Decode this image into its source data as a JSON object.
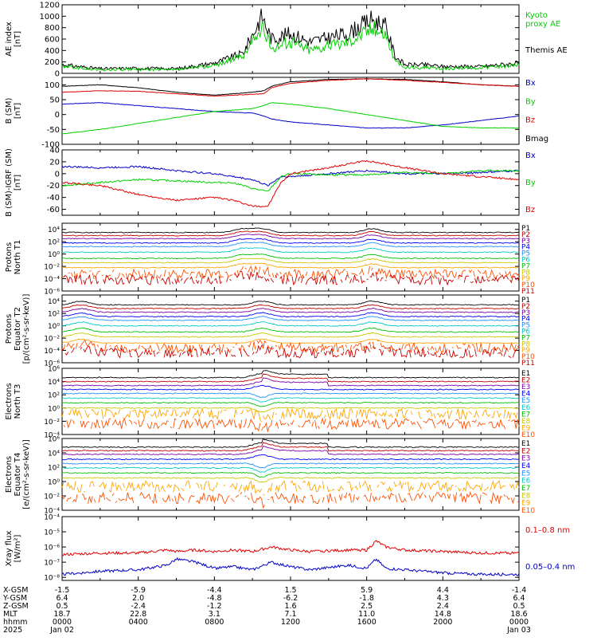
{
  "colors": {
    "black": "#000000",
    "red": "#e00000",
    "green": "#00d000",
    "blue": "#0000c8",
    "channels": [
      "#000000",
      "#c00000",
      "#7a00a8",
      "#0000ff",
      "#1e90ff",
      "#00c8c8",
      "#00c000",
      "#c8c800",
      "#ffa500",
      "#ff5000",
      "#c80000"
    ]
  },
  "chart_data": [
    {
      "type": "line",
      "ylabel": "AE index\n[nT]",
      "yticks": [
        "1200",
        "1000",
        "800",
        "600",
        "400",
        "200",
        "0"
      ],
      "ylim": [
        0,
        1200
      ],
      "legend": [
        {
          "label": "Kyoto\nproxy AE",
          "color": "#00d000"
        },
        {
          "label": "Themis AE",
          "color": "#000000"
        }
      ],
      "x_hours": [
        0,
        2,
        4,
        6,
        8,
        9.5,
        10.5,
        11,
        12,
        13,
        15,
        16.3,
        17,
        17.5,
        18,
        19,
        20,
        22,
        24
      ],
      "series": [
        {
          "name": "Themis AE",
          "color": "#000000",
          "values": [
            150,
            80,
            90,
            80,
            180,
            350,
            1000,
            600,
            700,
            550,
            700,
            950,
            820,
            300,
            150,
            150,
            120,
            120,
            180
          ]
        },
        {
          "name": "Kyoto proxy AE",
          "color": "#00d000",
          "values": [
            120,
            60,
            70,
            60,
            140,
            300,
            800,
            450,
            550,
            420,
            560,
            800,
            700,
            200,
            100,
            100,
            80,
            100,
            150
          ]
        }
      ]
    },
    {
      "type": "line",
      "ylabel": "B (SM)\n[nT]",
      "yticks": [
        "100",
        "50",
        "0",
        "-50",
        "-100"
      ],
      "ylim": [
        -100,
        125
      ],
      "legend": [
        {
          "label": "Bx",
          "color": "#0000c8"
        },
        {
          "label": "By",
          "color": "#00d000"
        },
        {
          "label": "Bz",
          "color": "#e00000"
        },
        {
          "label": "Bmag",
          "color": "#000000"
        }
      ],
      "x_hours": [
        0,
        2,
        4,
        6,
        8,
        10,
        10.6,
        11,
        12,
        14,
        16,
        18,
        20,
        22,
        24
      ],
      "series": [
        {
          "name": "Bmag",
          "color": "#000000",
          "values": [
            95,
            100,
            90,
            75,
            65,
            75,
            80,
            95,
            110,
            118,
            120,
            118,
            110,
            100,
            95
          ]
        },
        {
          "name": "Bz",
          "color": "#e00000",
          "values": [
            75,
            80,
            78,
            70,
            62,
            68,
            70,
            90,
            105,
            115,
            120,
            115,
            108,
            100,
            95
          ]
        },
        {
          "name": "Bx",
          "color": "#0000c8",
          "values": [
            35,
            40,
            30,
            20,
            10,
            5,
            -5,
            -15,
            -25,
            -35,
            -45,
            -45,
            -35,
            -20,
            -5
          ]
        },
        {
          "name": "By",
          "color": "#00d000",
          "values": [
            -65,
            -50,
            -30,
            -10,
            10,
            20,
            30,
            40,
            35,
            20,
            0,
            -20,
            -40,
            -45,
            -45
          ]
        }
      ]
    },
    {
      "type": "line",
      "ylabel": "B (SM)-IGRF (SM)\n[nT]",
      "yticks": [
        "40",
        "20",
        "0",
        "-20",
        "-40",
        "-60"
      ],
      "ylim": [
        -70,
        40
      ],
      "legend": [
        {
          "label": "Bx",
          "color": "#0000c8"
        },
        {
          "label": "By",
          "color": "#00d000"
        },
        {
          "label": "Bz",
          "color": "#e00000"
        }
      ],
      "x_hours": [
        0,
        2,
        4,
        6,
        8,
        9,
        10,
        10.8,
        11.5,
        12,
        14,
        16,
        18,
        20,
        22,
        24
      ],
      "series": [
        {
          "name": "Bx",
          "color": "#0000c8",
          "values": [
            12,
            10,
            12,
            5,
            0,
            -5,
            -10,
            -20,
            -5,
            -5,
            0,
            5,
            0,
            0,
            2,
            5
          ]
        },
        {
          "name": "By",
          "color": "#00d000",
          "values": [
            -20,
            -15,
            -10,
            -12,
            -15,
            -15,
            -25,
            -30,
            -5,
            0,
            -2,
            -2,
            2,
            0,
            5,
            5
          ]
        },
        {
          "name": "Bz",
          "color": "#e00000",
          "values": [
            -15,
            -20,
            -35,
            -45,
            -40,
            -45,
            -55,
            -55,
            -15,
            0,
            10,
            22,
            10,
            0,
            -5,
            -10
          ]
        }
      ]
    },
    {
      "type": "line",
      "ylabel": "Protons\nNorth T1",
      "ytick_labels": [
        "10⁴",
        "10²",
        "10⁰",
        "10⁻²",
        "10⁻⁴",
        "10⁻⁶"
      ],
      "log_range": [
        -6,
        5
      ],
      "channels": [
        "P1",
        "P2",
        "P3",
        "P4",
        "P5",
        "P6",
        "P7",
        "P8",
        "P9",
        "P10",
        "P11"
      ],
      "base_log_flux": [
        3.5,
        3.0,
        2.5,
        1.8,
        1.2,
        0.3,
        -0.7,
        -1.4,
        -2.2,
        -3.3,
        -4.2
      ],
      "events_hours": [
        9.5,
        10.5,
        16.3
      ]
    },
    {
      "type": "line",
      "ylabel": "Protons\nEquator T2\n[p/(cm²-s-sr-keV)]",
      "ytick_labels": [
        "10⁴",
        "10²",
        "10⁰",
        "10⁻²",
        "10⁻⁴",
        "10⁻⁶"
      ],
      "log_range": [
        -6,
        5
      ],
      "channels": [
        "P1",
        "P2",
        "P3",
        "P4",
        "P5",
        "P6",
        "P7",
        "P8",
        "P9",
        "P10",
        "P11"
      ],
      "base_log_flux": [
        3.4,
        2.8,
        2.2,
        1.5,
        0.9,
        0.0,
        -1.0,
        -1.8,
        -2.8,
        -3.6,
        -4.4
      ],
      "events_hours": [
        1,
        10.5,
        16.3
      ]
    },
    {
      "type": "line",
      "ylabel": "Electrons\nNorth T3",
      "ytick_labels": [
        "10⁶",
        "10⁴",
        "10²",
        "10⁰",
        "10⁻²",
        "10⁻⁴"
      ],
      "log_range": [
        -4,
        6
      ],
      "channels": [
        "E1",
        "E2",
        "E3",
        "E4",
        "E5",
        "E6",
        "E7",
        "E8",
        "E9",
        "E10"
      ],
      "base_log_flux": [
        4.6,
        4.0,
        3.4,
        2.8,
        2.2,
        1.5,
        0.8,
        0.0,
        -0.9,
        -2.4
      ],
      "events_hours": [
        10.5
      ]
    },
    {
      "type": "line",
      "ylabel": "Electrons\nEquator T4\n[e/(cm²-s-sr-keV)]",
      "ytick_labels": [
        "10⁶",
        "10⁴",
        "10²",
        "10⁰",
        "10⁻²",
        "10⁻⁴"
      ],
      "log_range": [
        -4,
        6
      ],
      "channels": [
        "E1",
        "E2",
        "E3",
        "E4",
        "E5",
        "E6",
        "E7",
        "E8",
        "E9",
        "E10"
      ],
      "base_log_flux": [
        4.8,
        4.3,
        3.8,
        3.1,
        2.5,
        1.9,
        1.2,
        0.5,
        -0.7,
        -2.3
      ],
      "events_hours": [
        10.5
      ]
    },
    {
      "type": "line",
      "ylabel": "Xray flux\n[W/m²]",
      "ytick_labels": [
        "10⁻⁴",
        "10⁻⁵",
        "10⁻⁶",
        "10⁻⁷",
        "10⁻⁸"
      ],
      "log_range": [
        -8.2,
        -4
      ],
      "legend": [
        {
          "label": "0.1–0.8 nm",
          "color": "#e00000"
        },
        {
          "label": "0.05–0.4 nm",
          "color": "#0000c8"
        }
      ],
      "x_hours": [
        0,
        2,
        4,
        5.5,
        6,
        7,
        8,
        9,
        10,
        11,
        12,
        13,
        15,
        16,
        16.5,
        17,
        18,
        20,
        22,
        24
      ],
      "series": [
        {
          "name": "0.1–0.8 nm",
          "color": "#e00000",
          "values": [
            -6.5,
            -6.4,
            -6.4,
            -6.2,
            -6.3,
            -6.2,
            -6.3,
            -6.2,
            -6.3,
            -6.0,
            -6.2,
            -6.3,
            -6.2,
            -6.2,
            -5.6,
            -6.0,
            -6.2,
            -6.3,
            -6.4,
            -6.4
          ]
        },
        {
          "name": "0.05–0.4 nm",
          "color": "#0000c8",
          "values": [
            -7.8,
            -7.6,
            -7.5,
            -7.2,
            -6.8,
            -7.0,
            -7.4,
            -7.3,
            -7.5,
            -7.0,
            -7.3,
            -7.5,
            -7.2,
            -7.4,
            -6.8,
            -7.4,
            -7.5,
            -7.7,
            -7.8,
            -7.8
          ]
        }
      ]
    }
  ],
  "xaxis": {
    "rows": [
      {
        "label": "X-GSM",
        "values": [
          "-1.5",
          "-5.9",
          "-4.4",
          "1.5",
          "5.9",
          "4.4",
          "-1.4"
        ]
      },
      {
        "label": "Y-GSM",
        "values": [
          "6.4",
          "2.0",
          "-4.8",
          "-6.2",
          "-1.8",
          "4.3",
          "6.4"
        ]
      },
      {
        "label": "Z-GSM",
        "values": [
          "0.5",
          "-2.4",
          "-1.2",
          "1.6",
          "2.5",
          "2.4",
          "0.5"
        ]
      },
      {
        "label": "MLT",
        "values": [
          "18.7",
          "22.8",
          "3.1",
          "7.1",
          "11.0",
          "14.8",
          "18.6"
        ]
      },
      {
        "label": "hhmm",
        "values": [
          "0000",
          "0400",
          "0800",
          "1200",
          "1600",
          "2000",
          "0000"
        ]
      },
      {
        "label": "2025",
        "values": [
          "Jan 02",
          "",
          "",
          "",
          "",
          "",
          "Jan 03"
        ]
      }
    ]
  }
}
